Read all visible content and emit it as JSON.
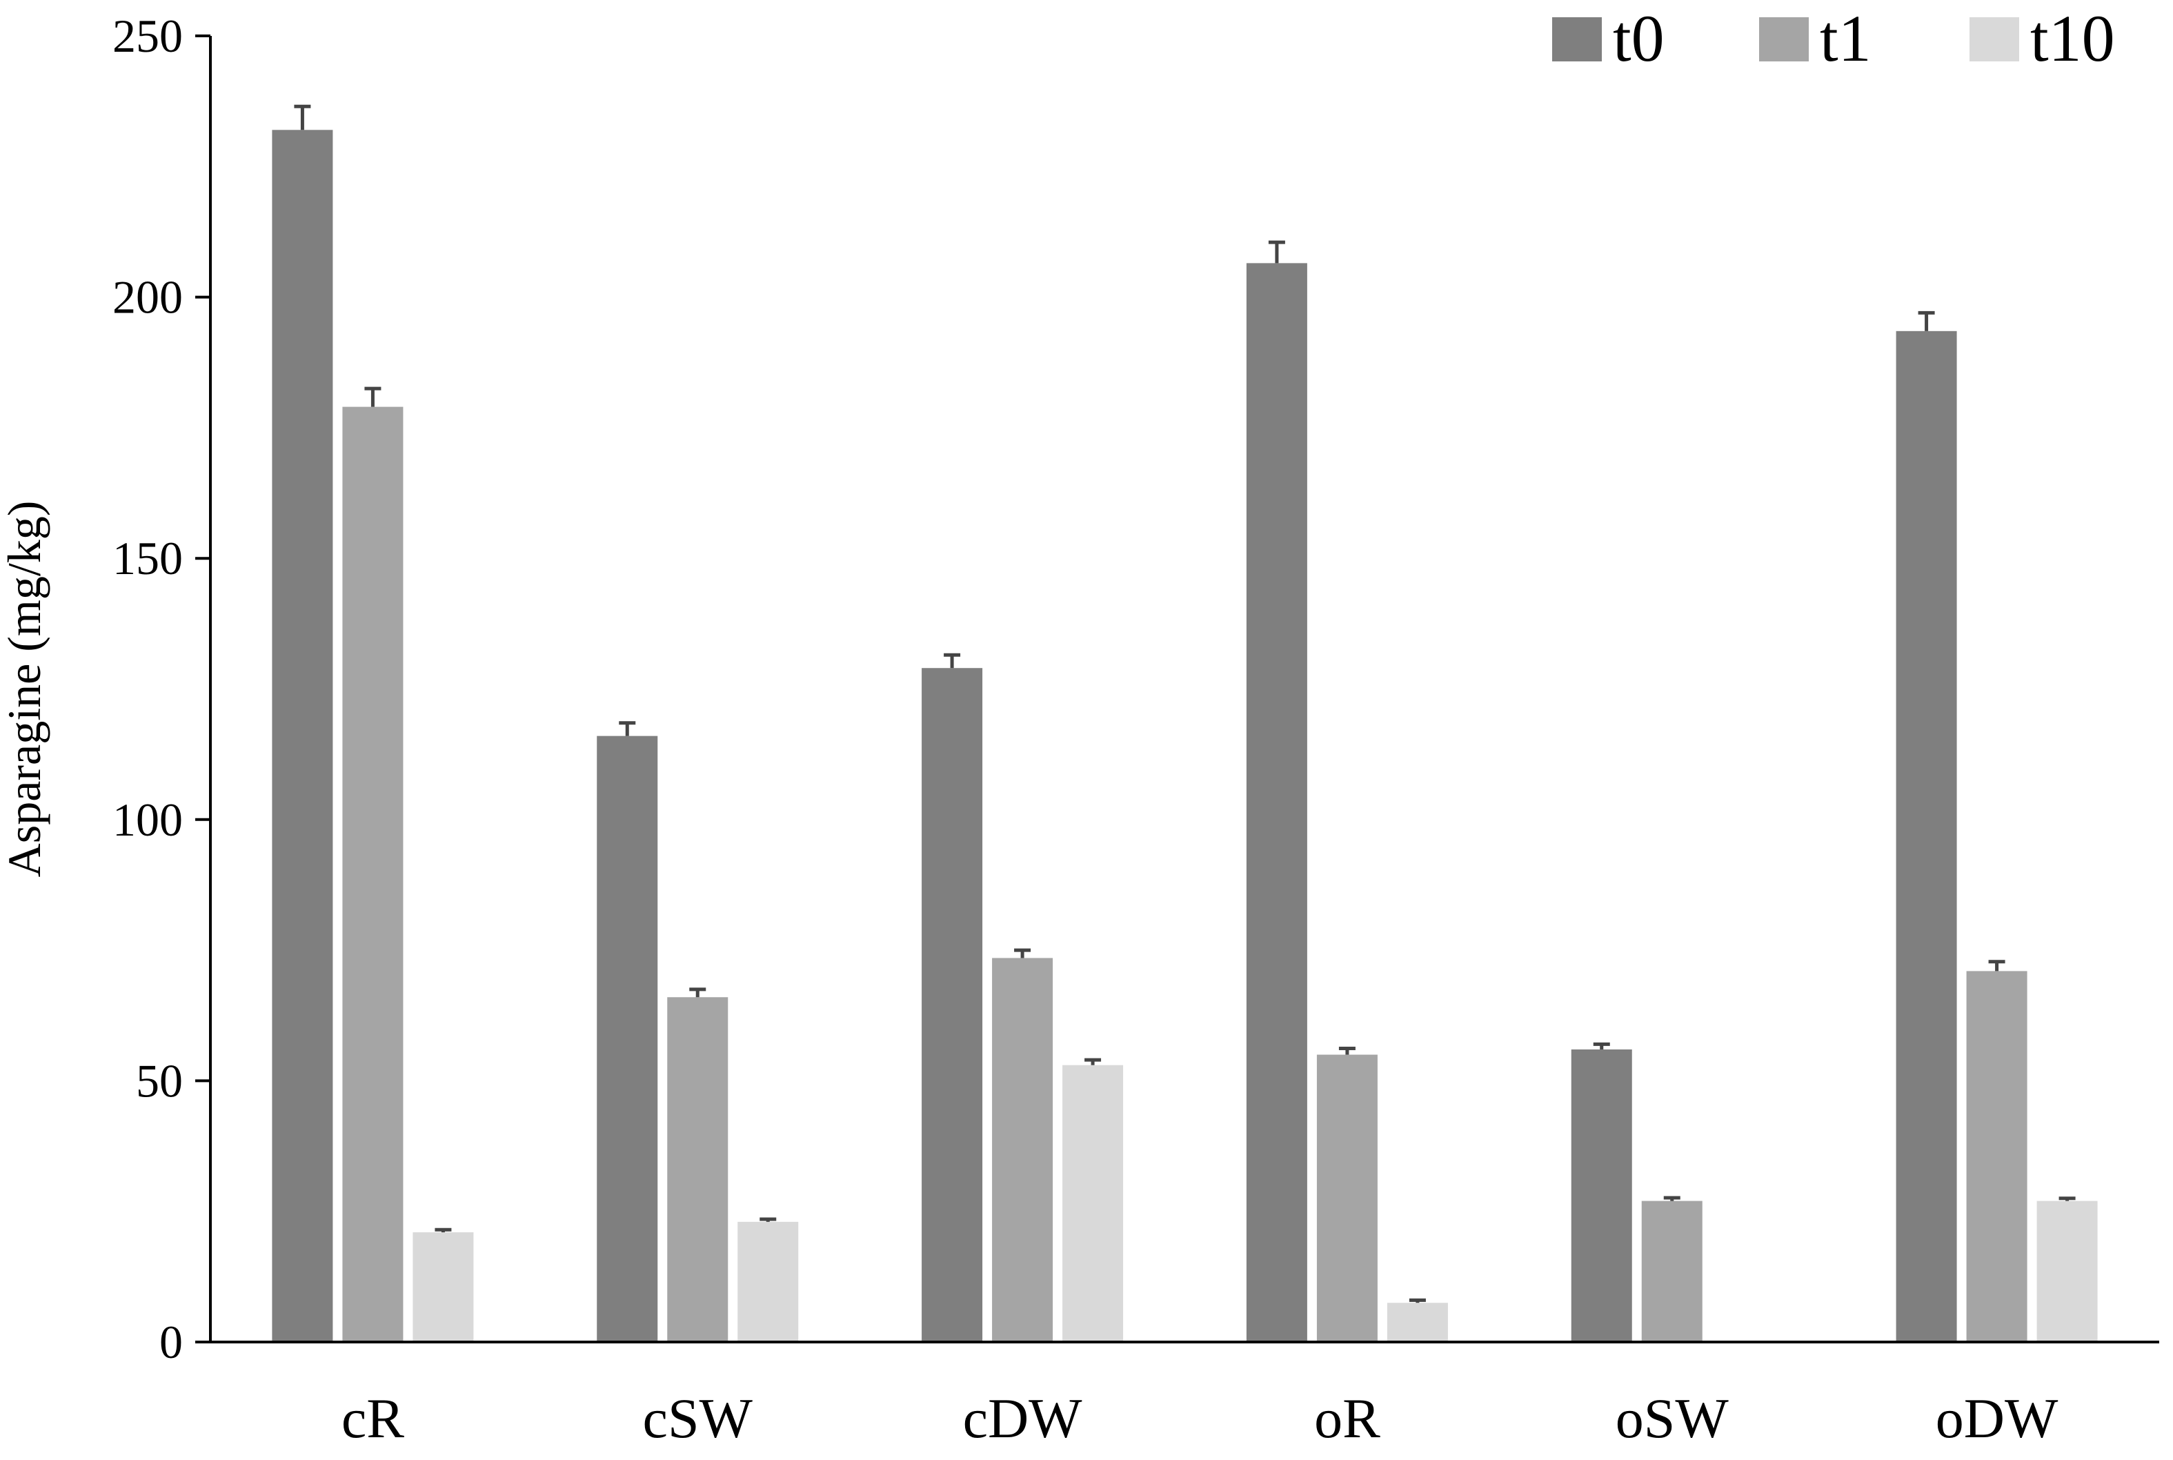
{
  "chart_data": {
    "type": "bar",
    "title": "",
    "xlabel": "",
    "ylabel": "Asparagine (mg/kg)",
    "ylim": [
      0,
      250
    ],
    "yticks": [
      0,
      50,
      100,
      150,
      200,
      250
    ],
    "grid": false,
    "legend_position": "top-right",
    "categories": [
      "cR",
      "cSW",
      "cDW",
      "oR",
      "oSW",
      "oDW"
    ],
    "series": [
      {
        "name": "t0",
        "color": "#7f7f7f",
        "values": [
          232,
          116,
          129,
          206.5,
          56,
          193.5
        ],
        "errors": [
          4.5,
          2.5,
          2.5,
          4,
          1,
          3.5
        ]
      },
      {
        "name": "t1",
        "color": "#a5a5a5",
        "values": [
          179,
          66,
          73.5,
          55,
          27,
          71
        ],
        "errors": [
          3.5,
          1.5,
          1.5,
          1.2,
          0.6,
          1.8
        ]
      },
      {
        "name": "t10",
        "color": "#d9d9d9",
        "values": [
          21,
          23,
          53,
          7.5,
          0,
          27
        ],
        "errors": [
          0.5,
          0.5,
          1,
          0.5,
          0,
          0.5
        ]
      }
    ]
  }
}
